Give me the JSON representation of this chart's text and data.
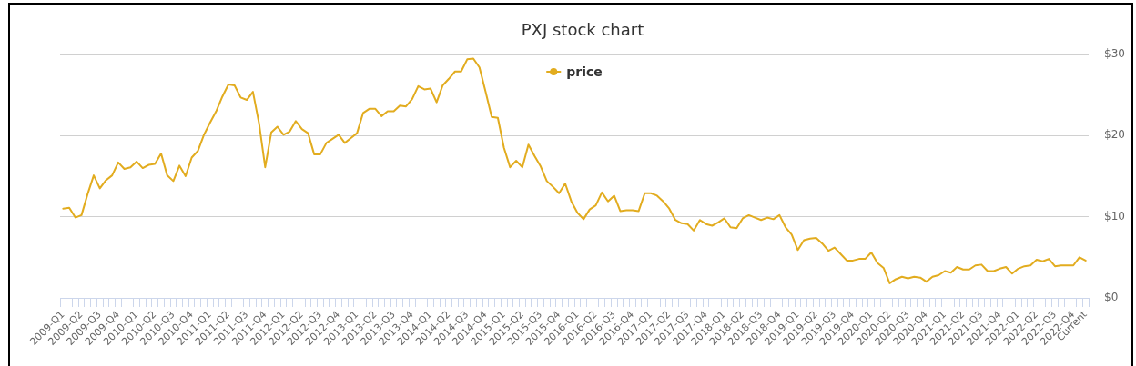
{
  "chart_data": {
    "type": "line",
    "title": "PXJ stock chart",
    "categories": [
      "2009-Q1",
      null,
      null,
      "2009-Q2",
      null,
      null,
      "2009-Q3",
      null,
      null,
      "2009-Q4",
      null,
      null,
      "2010-Q1",
      null,
      null,
      "2010-Q2",
      null,
      null,
      "2010-Q3",
      null,
      null,
      "2010-Q4",
      null,
      null,
      "2011-Q1",
      null,
      null,
      "2011-Q2",
      null,
      null,
      "2011-Q3",
      null,
      null,
      "2011-Q4",
      null,
      null,
      "2012-Q1",
      null,
      null,
      "2012-Q2",
      null,
      null,
      "2012-Q3",
      null,
      null,
      "2012-Q4",
      null,
      null,
      "2013-Q1",
      null,
      null,
      "2013-Q2",
      null,
      null,
      "2013-Q3",
      null,
      null,
      "2013-Q4",
      null,
      null,
      "2014-Q1",
      null,
      null,
      "2014-Q2",
      null,
      null,
      "2014-Q3",
      null,
      null,
      "2014-Q4",
      null,
      null,
      "2015-Q1",
      null,
      null,
      "2015-Q2",
      null,
      null,
      "2015-Q3",
      null,
      null,
      "2015-Q4",
      null,
      null,
      "2016-Q1",
      null,
      null,
      "2016-Q2",
      null,
      null,
      "2016-Q3",
      null,
      null,
      "2016-Q4",
      null,
      null,
      "2017-Q1",
      null,
      null,
      "2017-Q2",
      null,
      null,
      "2017-Q3",
      null,
      null,
      "2017-Q4",
      null,
      null,
      "2018-Q1",
      null,
      null,
      "2018-Q2",
      null,
      null,
      "2018-Q3",
      null,
      null,
      "2018-Q4",
      null,
      null,
      "2019-Q1",
      null,
      null,
      "2019-Q2",
      null,
      null,
      "2019-Q3",
      null,
      null,
      "2019-Q4",
      null,
      null,
      "2020-Q1",
      null,
      null,
      "2020-Q2",
      null,
      null,
      "2020-Q3",
      null,
      null,
      "2020-Q4",
      null,
      null,
      "2021-Q1",
      null,
      null,
      "2021-Q2",
      null,
      null,
      "2021-Q3",
      null,
      null,
      "2021-Q4",
      null,
      null,
      "2022-Q1",
      null,
      null,
      "2022-Q2",
      null,
      null,
      "2022-Q3",
      null,
      null,
      "2022-Q4",
      null,
      "Current"
    ],
    "series": [
      {
        "name": "price",
        "color": "#e2ac1f",
        "values": [
          11.0,
          11.1,
          9.9,
          10.2,
          12.8,
          15.1,
          13.5,
          14.5,
          15.1,
          16.7,
          15.9,
          16.1,
          16.8,
          16.0,
          16.4,
          16.5,
          17.8,
          15.1,
          14.4,
          16.3,
          15.0,
          17.3,
          18.1,
          20.1,
          21.6,
          23.0,
          24.8,
          26.3,
          26.2,
          24.7,
          24.4,
          25.4,
          21.5,
          16.1,
          20.4,
          21.1,
          20.1,
          20.5,
          21.8,
          20.8,
          20.3,
          17.7,
          17.7,
          19.1,
          19.6,
          20.1,
          19.1,
          19.7,
          20.3,
          22.8,
          23.3,
          23.3,
          22.4,
          23.0,
          23.0,
          23.7,
          23.6,
          24.5,
          26.1,
          25.7,
          25.8,
          24.1,
          26.2,
          27.0,
          27.9,
          27.9,
          29.4,
          29.5,
          28.4,
          25.4,
          22.3,
          22.2,
          18.5,
          16.1,
          16.9,
          16.1,
          18.9,
          17.5,
          16.2,
          14.4,
          13.7,
          12.9,
          14.1,
          11.9,
          10.5,
          9.7,
          10.9,
          11.4,
          13.0,
          11.9,
          12.6,
          10.7,
          10.8,
          10.8,
          10.7,
          12.9,
          12.9,
          12.6,
          11.9,
          11.0,
          9.6,
          9.2,
          9.1,
          8.3,
          9.6,
          9.1,
          8.9,
          9.3,
          9.8,
          8.7,
          8.6,
          9.8,
          10.2,
          9.9,
          9.6,
          9.9,
          9.7,
          10.2,
          8.7,
          7.8,
          5.9,
          7.1,
          7.3,
          7.4,
          6.7,
          5.8,
          6.2,
          5.4,
          4.6,
          4.6,
          4.8,
          4.8,
          5.6,
          4.3,
          3.7,
          1.8,
          2.3,
          2.6,
          2.4,
          2.6,
          2.5,
          2.0,
          2.6,
          2.8,
          3.3,
          3.1,
          3.8,
          3.5,
          3.5,
          4.0,
          4.1,
          3.3,
          3.3,
          3.6,
          3.8,
          3.0,
          3.6,
          3.9,
          4.0,
          4.7,
          4.5,
          4.8,
          3.9,
          4.0,
          4.0,
          4.0,
          5.0,
          4.6
        ]
      }
    ],
    "ylim": [
      0,
      30
    ],
    "yticks": [
      {
        "value": 0,
        "label": "$0"
      },
      {
        "value": 10,
        "label": "$10"
      },
      {
        "value": 20,
        "label": "$20"
      },
      {
        "value": 30,
        "label": "$30"
      }
    ],
    "grid": "y",
    "legend": "top",
    "marker": "none"
  }
}
